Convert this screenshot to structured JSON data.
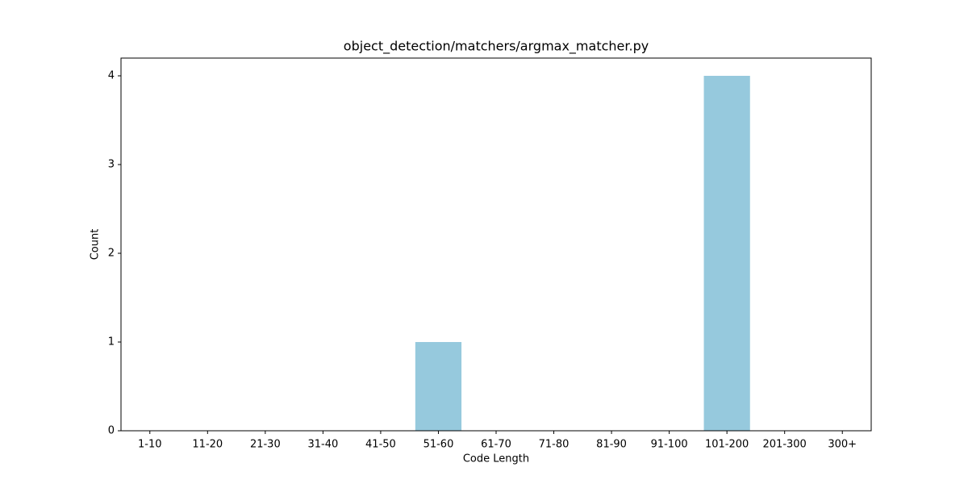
{
  "chart_data": {
    "type": "bar",
    "title": "object_detection/matchers/argmax_matcher.py",
    "x_label": "Code Length",
    "y_label": "Count",
    "categories": [
      "1-10",
      "11-20",
      "21-30",
      "31-40",
      "41-50",
      "51-60",
      "61-70",
      "71-80",
      "81-90",
      "91-100",
      "101-200",
      "201-300",
      "300+"
    ],
    "values": [
      0,
      0,
      0,
      0,
      0,
      1,
      0,
      0,
      0,
      0,
      4,
      0,
      0
    ],
    "color": "#96c9dd",
    "ylim": [
      0,
      4.2
    ],
    "yticks": [
      0,
      1,
      2,
      3,
      4
    ],
    "grid": false
  }
}
